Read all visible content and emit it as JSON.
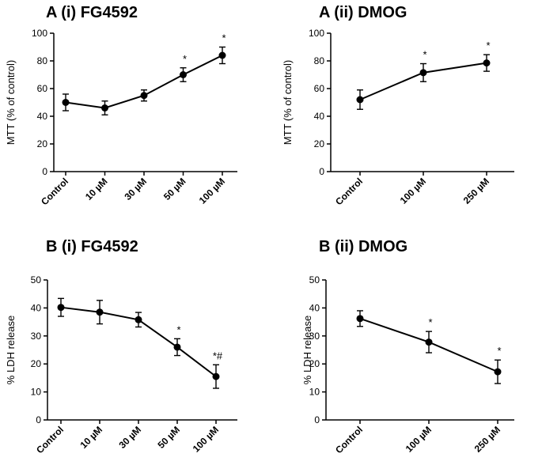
{
  "chart_data": [
    {
      "type": "line",
      "title": "A (i) FG4592",
      "ylabel": "MTT (% of control)",
      "xlabel": "",
      "ylim": [
        0,
        100
      ],
      "yticks": [
        "0",
        "20",
        "40",
        "60",
        "80",
        "100"
      ],
      "categories": [
        "Control",
        "10 µM",
        "30 µM",
        "50 µM",
        "100 µM"
      ],
      "values": [
        50,
        46,
        55,
        70,
        84
      ],
      "errors": [
        6,
        5,
        4,
        5,
        6
      ],
      "annotations": [
        "",
        "",
        "",
        "*",
        "*"
      ]
    },
    {
      "type": "line",
      "title": "A (ii) DMOG",
      "ylabel": "MTT (% of control)",
      "xlabel": "",
      "ylim": [
        0,
        100
      ],
      "yticks": [
        "0",
        "20",
        "40",
        "60",
        "80",
        "100"
      ],
      "categories": [
        "Control",
        "100 µM",
        "250 µM"
      ],
      "values": [
        52,
        71.5,
        78.5
      ],
      "errors": [
        7,
        6.5,
        6
      ],
      "annotations": [
        "",
        "*",
        "*"
      ]
    },
    {
      "type": "line",
      "title": "B (i) FG4592",
      "ylabel": "% LDH release",
      "xlabel": "",
      "ylim": [
        0,
        50
      ],
      "yticks": [
        "0",
        "10",
        "20",
        "30",
        "40",
        "50"
      ],
      "categories": [
        "Control",
        "10 µM",
        "30 µM",
        "50 µM",
        "100 µM"
      ],
      "values": [
        40.2,
        38.5,
        35.8,
        26,
        15.5
      ],
      "errors": [
        3.2,
        4.2,
        2.6,
        3,
        4.2
      ],
      "annotations": [
        "",
        "",
        "",
        "*",
        "*#"
      ]
    },
    {
      "type": "line",
      "title": "B (ii) DMOG",
      "ylabel": "% LDH release",
      "xlabel": "",
      "ylim": [
        0,
        50
      ],
      "yticks": [
        "0",
        "10",
        "20",
        "30",
        "40",
        "50"
      ],
      "categories": [
        "Control",
        "100 µM",
        "250 µM"
      ],
      "values": [
        36.2,
        27.8,
        17.2
      ],
      "errors": [
        2.8,
        3.8,
        4.2
      ],
      "annotations": [
        "",
        "*",
        "*"
      ]
    }
  ]
}
